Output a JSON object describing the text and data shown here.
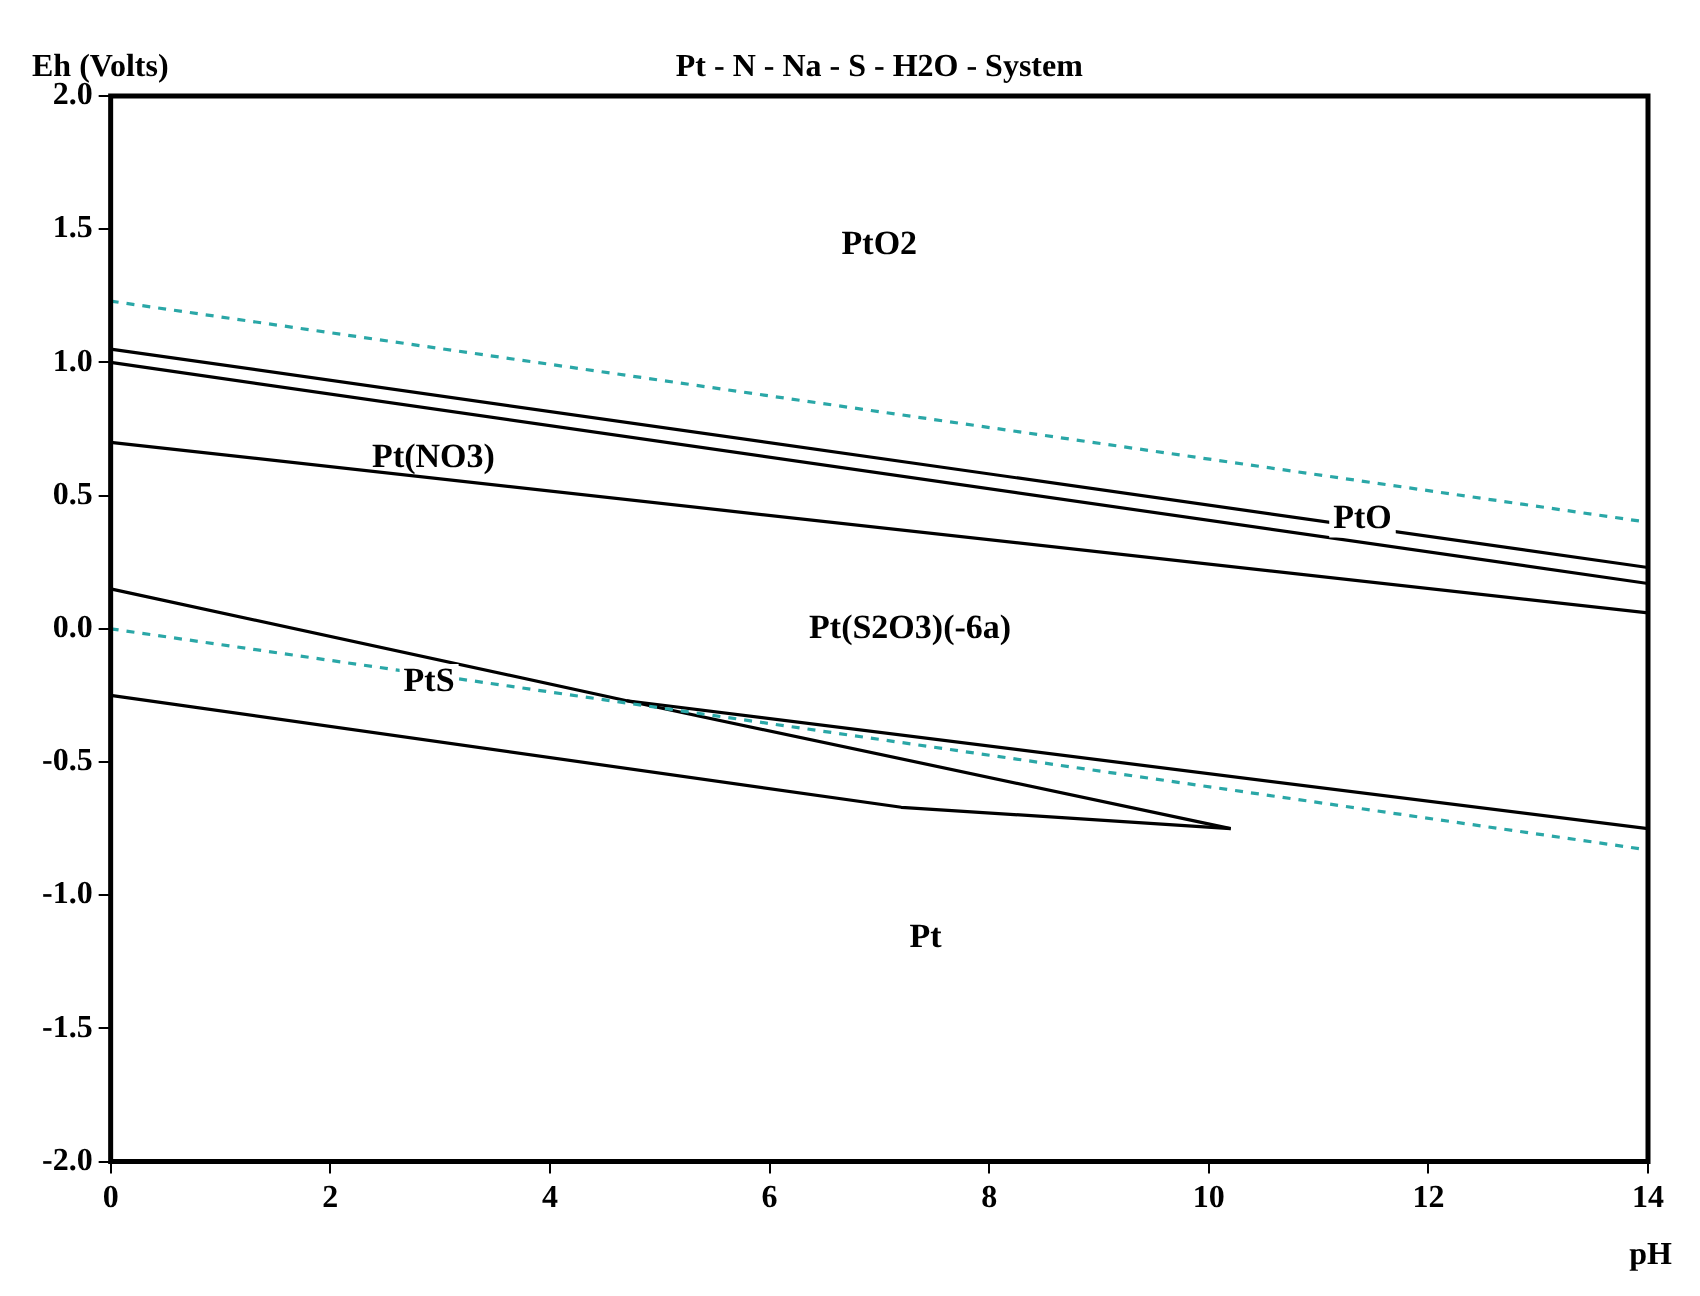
{
  "chart_data": {
    "type": "line",
    "title": "Pt - N - Na - S - H2O - System",
    "xlabel": "pH",
    "ylabel": "Eh (Volts)",
    "xlim": [
      0,
      14
    ],
    "xticks": [
      0,
      2,
      4,
      6,
      8,
      10,
      12,
      14
    ],
    "ylim": [
      -2,
      2
    ],
    "yticks": [
      {
        "value": -2,
        "label": "-2.0"
      },
      {
        "value": -1.5,
        "label": "-1.5"
      },
      {
        "value": -1,
        "label": "-1.0"
      },
      {
        "value": -0.5,
        "label": "-0.5"
      },
      {
        "value": 0,
        "label": "0.0"
      },
      {
        "value": 0.5,
        "label": "0.5"
      },
      {
        "value": 1,
        "label": "1.0"
      },
      {
        "value": 1.5,
        "label": "1.5"
      },
      {
        "value": 2,
        "label": "2.0"
      }
    ],
    "grid": false,
    "legend": false,
    "marker": "none",
    "series": [
      {
        "color": "#2aa7a7",
        "line_style": "dashed",
        "x": [
          0,
          14
        ],
        "values": [
          1.23,
          0.4
        ]
      },
      {
        "color": "#2aa7a7",
        "line_style": "dashed",
        "x": [
          0,
          14
        ],
        "values": [
          0.0,
          -0.83
        ]
      },
      {
        "color": "#000000",
        "line_style": "solid",
        "x": [
          0,
          14
        ],
        "values": [
          1.05,
          0.23
        ]
      },
      {
        "color": "#000000",
        "line_style": "solid",
        "x": [
          0,
          14
        ],
        "values": [
          1.0,
          0.17
        ]
      },
      {
        "color": "#000000",
        "line_style": "solid",
        "x": [
          0,
          14
        ],
        "values": [
          0.7,
          0.06
        ]
      },
      {
        "color": "#000000",
        "line_style": "solid",
        "x": [
          0,
          4.7,
          10.2
        ],
        "values": [
          0.15,
          -0.27,
          -0.75
        ]
      },
      {
        "color": "#000000",
        "line_style": "solid",
        "x": [
          4.7,
          14
        ],
        "values": [
          -0.27,
          -0.75
        ]
      },
      {
        "color": "#000000",
        "line_style": "solid",
        "x": [
          0,
          7.2,
          10.2
        ],
        "values": [
          -0.25,
          -0.67,
          -0.75
        ]
      }
    ],
    "annotations": [
      "PtO2",
      "Pt(NO3)",
      {
        "text": "PtO",
        "x": 11.4,
        "y": 0.41
      },
      "Pt(S2O3)(-6a)",
      {
        "text": "PtS",
        "x": 2.9,
        "y": -0.2
      },
      "Pt"
    ]
  }
}
